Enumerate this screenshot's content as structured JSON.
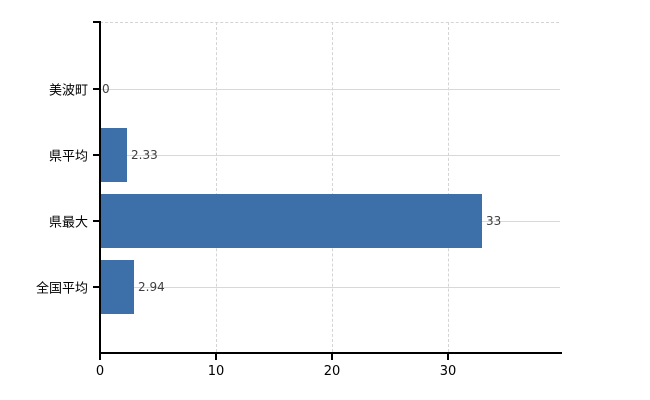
{
  "chart_data": {
    "type": "bar",
    "orientation": "horizontal",
    "title": "",
    "xlabel": "",
    "ylabel": "",
    "categories": [
      "美波町",
      "県平均",
      "県最大",
      "全国平均"
    ],
    "values": [
      0,
      2.33,
      33,
      2.94
    ],
    "value_labels": [
      "0",
      "2.33",
      "33",
      "2.94"
    ],
    "x_ticks": [
      0,
      10,
      20,
      30
    ],
    "x_tick_labels": [
      "0",
      "10",
      "20",
      "30"
    ],
    "xlim": [
      0,
      39.6
    ],
    "legend": "none",
    "grid": "horizontal solid at category centers, vertical dashed at x ticks, dashed top border",
    "colors": {
      "bar": "#3d6fa9",
      "axis": "#000000",
      "solid_gridline": "#d6dad6",
      "dashed_gridline": "#d4d4d4",
      "category_label": "#000000",
      "tick_label": "#000000",
      "value_label": "#3f3f3f",
      "background": "#ffffff"
    }
  }
}
